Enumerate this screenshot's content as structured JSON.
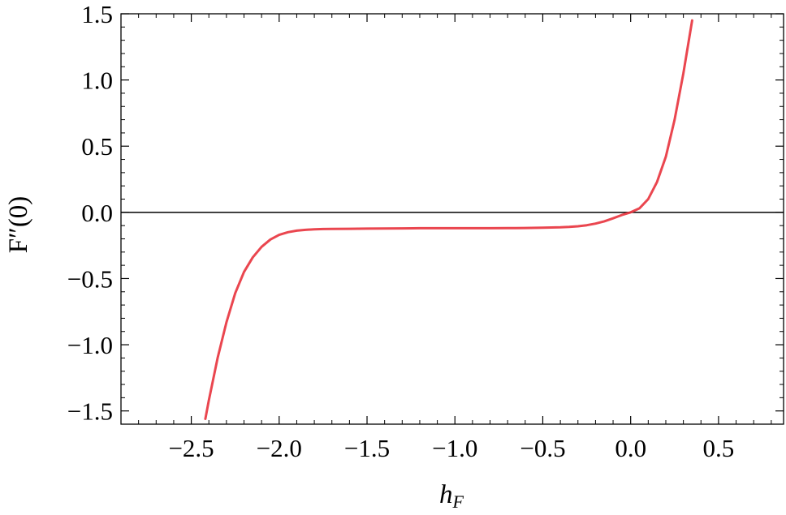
{
  "chart_data": {
    "type": "line",
    "title": "",
    "xlabel": "h_F",
    "xlabel_main": "h",
    "xlabel_sub": "F",
    "ylabel": "F″(0)",
    "xlim": [
      -2.9,
      0.87
    ],
    "ylim": [
      -1.6,
      1.5
    ],
    "x_ticks": [
      -2.5,
      -2.0,
      -1.5,
      -1.0,
      -0.5,
      0.0,
      0.5
    ],
    "x_tick_labels": [
      "−2.5",
      "−2.0",
      "−1.5",
      "−1.0",
      "−0.5",
      "0.0",
      "0.5"
    ],
    "y_ticks": [
      1.5,
      1.0,
      0.5,
      0.0,
      -0.5,
      -1.0,
      -1.5
    ],
    "y_tick_labels": [
      "1.5",
      "1.0",
      "0.5",
      "0.0",
      "−0.5",
      "−1.0",
      "−1.5"
    ],
    "reference_line_y": 0,
    "grid": false,
    "series": [
      {
        "color": "#e8323c",
        "x": [
          -2.42,
          -2.4,
          -2.35,
          -2.3,
          -2.25,
          -2.2,
          -2.15,
          -2.1,
          -2.05,
          -2.0,
          -1.95,
          -1.9,
          -1.85,
          -1.8,
          -1.75,
          -1.7,
          -1.6,
          -1.5,
          -1.4,
          -1.3,
          -1.2,
          -1.1,
          -1.0,
          -0.9,
          -0.8,
          -0.7,
          -0.6,
          -0.5,
          -0.4,
          -0.35,
          -0.3,
          -0.25,
          -0.2,
          -0.15,
          -0.1,
          -0.05,
          0.0,
          0.05,
          0.1,
          0.15,
          0.2,
          0.25,
          0.3,
          0.35
        ],
        "y": [
          -1.56,
          -1.42,
          -1.1,
          -0.83,
          -0.61,
          -0.45,
          -0.34,
          -0.26,
          -0.205,
          -0.17,
          -0.15,
          -0.138,
          -0.132,
          -0.128,
          -0.126,
          -0.125,
          -0.124,
          -0.123,
          -0.122,
          -0.121,
          -0.12,
          -0.12,
          -0.12,
          -0.12,
          -0.12,
          -0.119,
          -0.118,
          -0.116,
          -0.113,
          -0.11,
          -0.105,
          -0.097,
          -0.085,
          -0.068,
          -0.045,
          -0.02,
          0.0,
          0.03,
          0.1,
          0.23,
          0.42,
          0.7,
          1.05,
          1.45
        ]
      }
    ]
  }
}
